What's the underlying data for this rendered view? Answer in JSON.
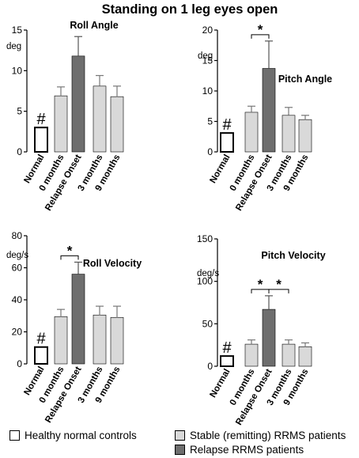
{
  "title": "Standing on 1 leg eyes open",
  "categories": [
    "Normal",
    "0 months",
    "Relapse Onset",
    "3 months",
    "9 months"
  ],
  "legend": [
    {
      "label": "Healthy normal controls",
      "color": "#ffffff"
    },
    {
      "label": "Stable (remitting) RRMS patients",
      "color": "#d9d9d9"
    },
    {
      "label": "Relapse RRMS patients",
      "color": "#6e6e6e"
    }
  ],
  "colors": {
    "normal": "#ffffff",
    "stable": "#d9d9d9",
    "relapse": "#6e6e6e"
  },
  "chart_data": [
    {
      "type": "bar",
      "title": "Roll Angle",
      "ylabel": "deg",
      "ylim": [
        0,
        15
      ],
      "yticks": [
        "0",
        "5",
        "10",
        "15"
      ],
      "categories": [
        "Normal",
        "0 months",
        "Relapse Onset",
        "3 months",
        "9 months"
      ],
      "values": [
        3.0,
        6.9,
        11.8,
        8.1,
        6.8
      ],
      "errors": [
        0,
        1.1,
        2.4,
        1.3,
        1.3
      ],
      "normal_marker": "#",
      "significance": []
    },
    {
      "type": "bar",
      "title": "Pitch Angle",
      "ylabel": "deg",
      "ylim": [
        0,
        20
      ],
      "yticks": [
        "0",
        "5",
        "10",
        "15",
        "20"
      ],
      "categories": [
        "Normal",
        "0 months",
        "Relapse Onset",
        "3 months",
        "9 months"
      ],
      "values": [
        3.1,
        6.5,
        13.7,
        6.0,
        5.3
      ],
      "errors": [
        0,
        1.0,
        4.5,
        1.3,
        0.7
      ],
      "normal_marker": "#",
      "significance": [
        {
          "from": "0 months",
          "to": "Relapse Onset",
          "label": "*"
        }
      ]
    },
    {
      "type": "bar",
      "title": "Roll Velocity",
      "ylabel": "deg/s",
      "ylim": [
        0,
        80
      ],
      "yticks": [
        "0",
        "20",
        "40",
        "60",
        "80"
      ],
      "categories": [
        "Normal",
        "0 months",
        "Relapse Onset",
        "3 months",
        "9 months"
      ],
      "values": [
        10.5,
        29.5,
        56.0,
        30.5,
        29.0
      ],
      "errors": [
        0,
        4.5,
        7.5,
        5.5,
        7.0
      ],
      "normal_marker": "#",
      "significance": [
        {
          "from": "0 months",
          "to": "Relapse Onset",
          "label": "*"
        }
      ]
    },
    {
      "type": "bar",
      "title": "Pitch Velocity",
      "ylabel": "deg/s",
      "ylim": [
        0,
        150
      ],
      "yticks": [
        "0",
        "50",
        "100",
        "150"
      ],
      "categories": [
        "Normal",
        "0 months",
        "Relapse Onset",
        "3 months",
        "9 months"
      ],
      "values": [
        12.0,
        26.0,
        67.0,
        26.0,
        23.0
      ],
      "errors": [
        0,
        5.0,
        16.0,
        5.0,
        4.5
      ],
      "normal_marker": "#",
      "significance": [
        {
          "from": "0 months",
          "to": "Relapse Onset",
          "label": "*"
        },
        {
          "from": "3 months",
          "to": "Relapse Onset",
          "label": "*"
        }
      ]
    }
  ]
}
